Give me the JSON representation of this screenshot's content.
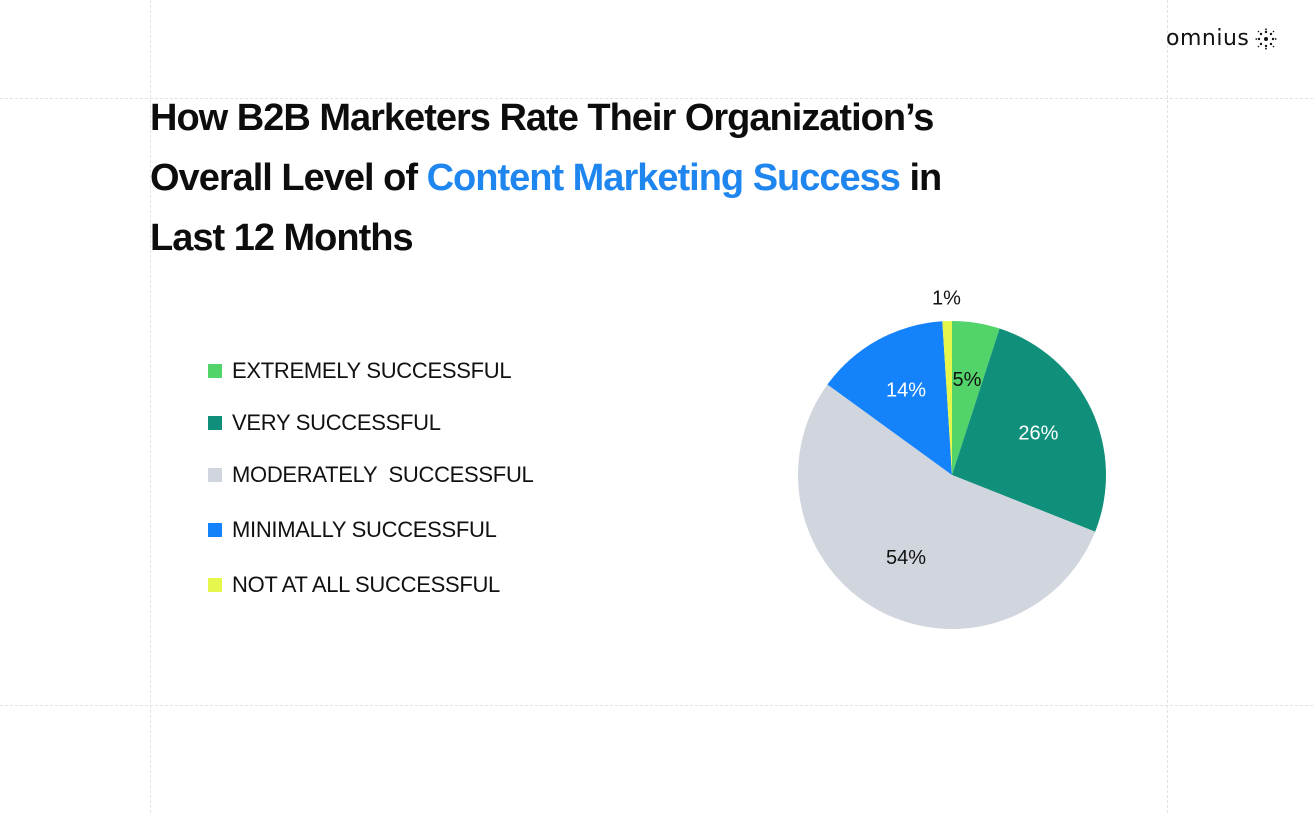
{
  "brand": {
    "name": "omnius"
  },
  "title": {
    "line1": "How B2B Marketers Rate Their Organization’s",
    "line2_pre": "Overall Level of ",
    "line2_accent": "Content Marketing Success",
    "line2_post": " in",
    "line3": "Last 12 Months",
    "accent_color": "#1f86f0"
  },
  "chart_data": {
    "type": "pie",
    "title": "How B2B Marketers Rate Their Organization’s Overall Level of Content Marketing Success in Last 12 Months",
    "legend_position": "left",
    "slices": [
      {
        "label": "EXTREMELY SUCCESSFUL",
        "value": 5,
        "display": "5%",
        "color": "#52d46a",
        "text_color": "#111111"
      },
      {
        "label": "VERY SUCCESSFUL",
        "value": 26,
        "display": "26%",
        "color": "#10907a",
        "text_color": "#ffffff"
      },
      {
        "label": "MODERATELY  SUCCESSFUL",
        "value": 54,
        "display": "54%",
        "color": "#d1d6de",
        "text_color": "#111111"
      },
      {
        "label": "MINIMALLY SUCCESSFUL",
        "value": 14,
        "display": "14%",
        "color": "#1482fa",
        "text_color": "#ffffff"
      },
      {
        "label": "NOT AT ALL SUCCESSFUL",
        "value": 1,
        "display": "1%",
        "color": "#e4f74a",
        "text_color": "#111111"
      }
    ]
  }
}
